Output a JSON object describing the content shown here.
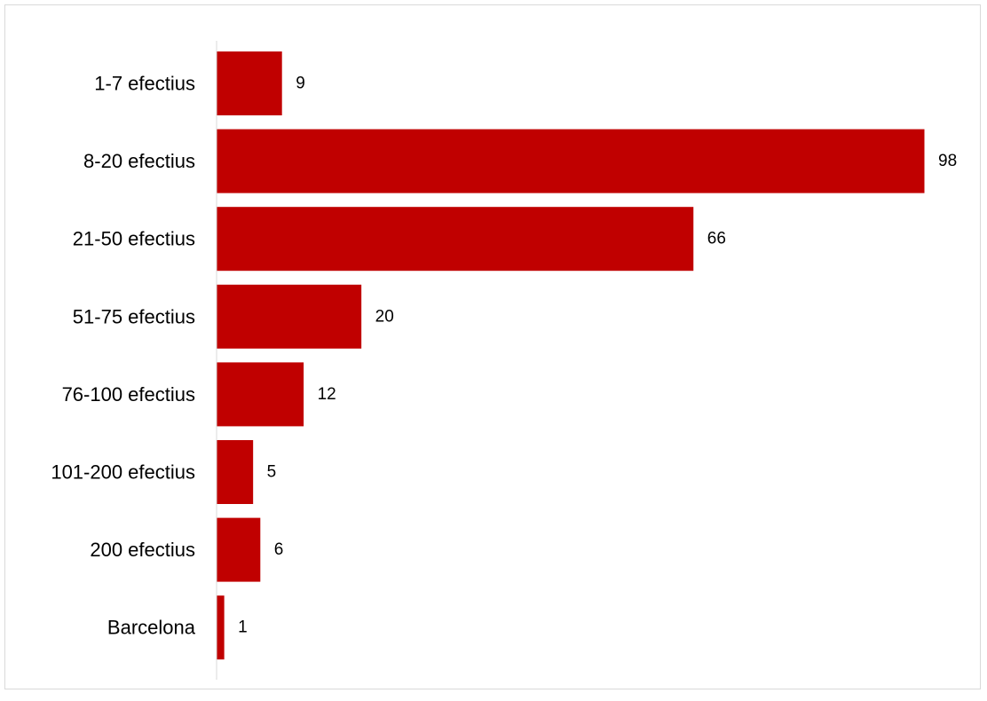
{
  "chart_data": {
    "type": "bar",
    "orientation": "horizontal",
    "title": "",
    "xlabel": "",
    "ylabel": "",
    "categories": [
      "1-7 efectius",
      "8-20 efectius",
      "21-50 efectius",
      "51-75 efectius",
      "76-100 efectius",
      "101-200 efectius",
      "200 efectius",
      "Barcelona"
    ],
    "values": [
      9,
      98,
      66,
      20,
      12,
      5,
      6,
      1
    ],
    "xlim": [
      0,
      98
    ],
    "bar_color": "#C00000",
    "axis_color": "#d9d9d9",
    "grid": false,
    "legend": "none",
    "data_labels": true
  }
}
